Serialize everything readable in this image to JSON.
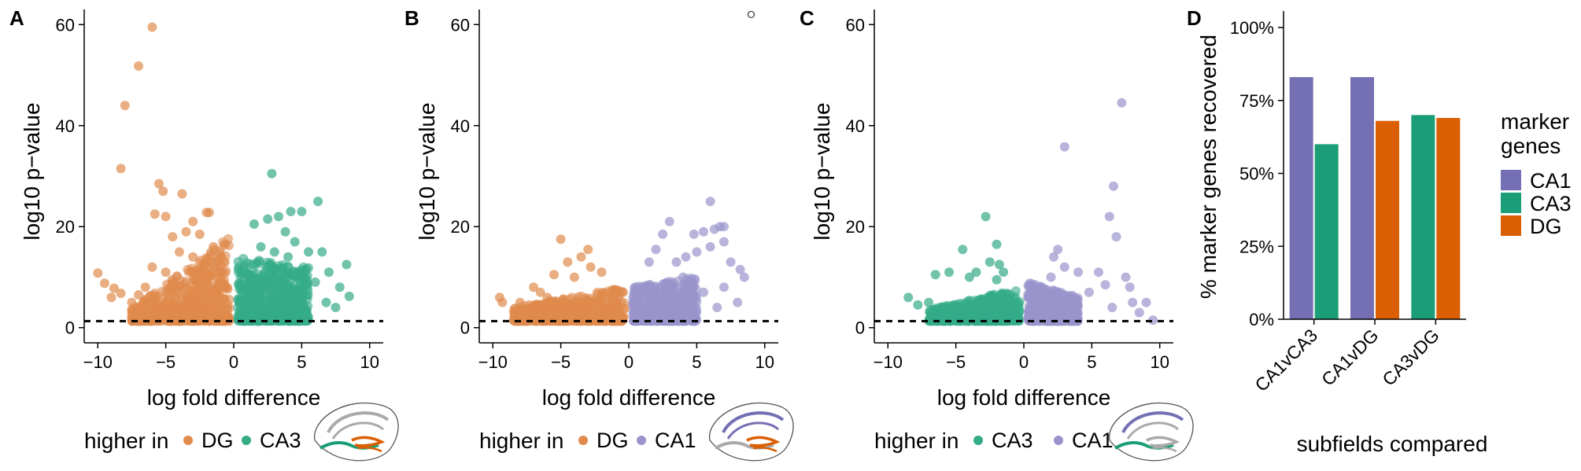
{
  "colors": {
    "DG": "#d95f02",
    "CA3": "#1b9e77",
    "CA1": "#7570b3",
    "DG_pt": "#e08b4c",
    "CA3_pt": "#35ab88",
    "CA1_pt": "#9a94cc"
  },
  "panels": [
    {
      "label": "A",
      "xlabel": "log fold difference",
      "ylabel": "log10 p−value",
      "xticks": [
        "−10",
        "−5",
        "0",
        "5",
        "10"
      ],
      "yticks": [
        "0",
        "20",
        "40",
        "60"
      ],
      "legend_title": "higher in",
      "legend_items": [
        {
          "name": "DG",
          "color": "#e08b4c"
        },
        {
          "name": "CA3",
          "color": "#35ab88"
        }
      ]
    },
    {
      "label": "B",
      "xlabel": "log fold difference",
      "ylabel": "log10 p−value",
      "xticks": [
        "−10",
        "−5",
        "0",
        "5",
        "10"
      ],
      "yticks": [
        "0",
        "20",
        "40",
        "60"
      ],
      "legend_title": "higher in",
      "legend_items": [
        {
          "name": "DG",
          "color": "#e08b4c"
        },
        {
          "name": "CA1",
          "color": "#9a94cc"
        }
      ]
    },
    {
      "label": "C",
      "xlabel": "log fold difference",
      "ylabel": "log10 p−value",
      "xticks": [
        "−10",
        "−5",
        "0",
        "5",
        "10"
      ],
      "yticks": [
        "0",
        "20",
        "40",
        "60"
      ],
      "legend_title": "higher in",
      "legend_items": [
        {
          "name": "CA3",
          "color": "#35ab88"
        },
        {
          "name": "CA1",
          "color": "#9a94cc"
        }
      ]
    },
    {
      "label": "D",
      "xlabel": "subfields compared",
      "ylabel": "% marker genes recovered",
      "xticks": [
        "CA1vCA3",
        "CA1vDG",
        "CA3vDG"
      ],
      "yticks": [
        "0%",
        "25%",
        "50%",
        "75%",
        "100%"
      ],
      "legend_title_1": "marker",
      "legend_title_2": "genes",
      "legend_items": [
        {
          "name": "CA1",
          "color": "#7570b3"
        },
        {
          "name": "CA3",
          "color": "#1b9e77"
        },
        {
          "name": "DG",
          "color": "#d95f02"
        }
      ]
    }
  ],
  "chart_data": [
    {
      "type": "scatter",
      "panel": "A",
      "xlabel": "log fold difference",
      "ylabel": "log10 p−value",
      "xlim": [
        -11,
        11
      ],
      "ylim": [
        -3,
        63
      ],
      "threshold_y": 1.3,
      "series": [
        {
          "name": "DG",
          "color": "#e08b4c",
          "points": [
            [
              -6,
              59.5
            ],
            [
              -7,
              51.8
            ],
            [
              -8,
              44
            ],
            [
              -8.3,
              31.5
            ],
            [
              -5.5,
              28.5
            ],
            [
              -5.2,
              27
            ],
            [
              -3.8,
              26.5
            ],
            [
              -5.8,
              22.5
            ],
            [
              -5,
              22
            ],
            [
              -3,
              21
            ],
            [
              -2,
              22.8
            ],
            [
              -1.8,
              22.8
            ],
            [
              -10,
              10.8
            ],
            [
              -9.5,
              8.8
            ],
            [
              -8.8,
              7.8
            ],
            [
              -8.3,
              6.8
            ],
            [
              -9,
              6
            ],
            [
              -4.5,
              18
            ],
            [
              -3.5,
              19
            ],
            [
              -2.5,
              18.5
            ],
            [
              -4,
              15
            ],
            [
              -3,
              14
            ],
            [
              -2,
              13
            ],
            [
              -6,
              12
            ],
            [
              -5,
              11
            ],
            [
              -6.5,
              8
            ],
            [
              -7,
              6.5
            ],
            [
              -7.5,
              5
            ],
            [
              -1.5,
              16
            ]
          ]
        },
        {
          "name": "CA3",
          "color": "#35ab88",
          "points": [
            [
              2.8,
              30.5
            ],
            [
              6.2,
              25
            ],
            [
              5,
              23
            ],
            [
              4.2,
              23
            ],
            [
              3.3,
              22
            ],
            [
              2.5,
              21.5
            ],
            [
              1.5,
              20.5
            ],
            [
              3.8,
              19
            ],
            [
              4.5,
              17
            ],
            [
              2,
              16
            ],
            [
              3,
              15
            ],
            [
              4,
              14
            ],
            [
              5.5,
              15
            ],
            [
              6.5,
              15
            ],
            [
              8.3,
              12.5
            ],
            [
              7,
              11
            ],
            [
              6,
              9
            ],
            [
              7.8,
              8
            ],
            [
              8.5,
              6.2
            ],
            [
              6.8,
              5
            ],
            [
              5,
              5
            ],
            [
              7.5,
              4
            ]
          ]
        }
      ],
      "dense_clusters": [
        {
          "series": "DG",
          "x": [
            -7.5,
            -0.3
          ],
          "y_top_left": 4,
          "y_top_right": 18
        },
        {
          "series": "CA3",
          "x": [
            0.3,
            5.5
          ],
          "y_top_left": 14,
          "y_top_right": 12
        }
      ]
    },
    {
      "type": "scatter",
      "panel": "B",
      "xlabel": "log fold difference",
      "ylabel": "log10 p−value",
      "xlim": [
        -11,
        11
      ],
      "ylim": [
        -3,
        63
      ],
      "threshold_y": 1.3,
      "outlier_open": [
        [
          9,
          62
        ]
      ],
      "series": [
        {
          "name": "DG",
          "color": "#e08b4c",
          "points": [
            [
              -5,
              17.5
            ],
            [
              -3,
              15.5
            ],
            [
              -3.5,
              14
            ],
            [
              -4.5,
              13
            ],
            [
              -2.8,
              12
            ],
            [
              -5.5,
              10.5
            ],
            [
              -2,
              11
            ],
            [
              -7,
              8
            ],
            [
              -6.5,
              7
            ],
            [
              -9.5,
              6
            ],
            [
              -9.3,
              5
            ],
            [
              -8,
              5
            ],
            [
              -6,
              6
            ],
            [
              -4,
              10
            ]
          ]
        },
        {
          "name": "CA1",
          "color": "#9a94cc",
          "points": [
            [
              6,
              25
            ],
            [
              3,
              21
            ],
            [
              7,
              20
            ],
            [
              6.7,
              20
            ],
            [
              6.3,
              19.5
            ],
            [
              5.5,
              19
            ],
            [
              2.5,
              18.5
            ],
            [
              4.8,
              18.5
            ],
            [
              7,
              17
            ],
            [
              6,
              16
            ],
            [
              5,
              15
            ],
            [
              4.2,
              14
            ],
            [
              7.5,
              13
            ],
            [
              8.2,
              11.5
            ],
            [
              3.5,
              13
            ],
            [
              4,
              10
            ],
            [
              8.5,
              10
            ],
            [
              7,
              8
            ],
            [
              5.5,
              7
            ],
            [
              8,
              5
            ],
            [
              6.5,
              4
            ],
            [
              2,
              15.5
            ],
            [
              1.5,
              13
            ]
          ]
        }
      ],
      "dense_clusters": [
        {
          "series": "DG",
          "x": [
            -8.5,
            -0.3
          ],
          "y_top_left": 4,
          "y_top_right": 8
        },
        {
          "series": "CA1",
          "x": [
            0.3,
            5
          ],
          "y_top_left": 8,
          "y_top_right": 10
        }
      ]
    },
    {
      "type": "scatter",
      "panel": "C",
      "xlabel": "log fold difference",
      "ylabel": "log10 p−value",
      "xlim": [
        -11,
        11
      ],
      "ylim": [
        -3,
        63
      ],
      "threshold_y": 1.3,
      "series": [
        {
          "name": "CA3",
          "color": "#35ab88",
          "points": [
            [
              -2.8,
              22
            ],
            [
              -2,
              16.5
            ],
            [
              -4.5,
              15.5
            ],
            [
              -2.5,
              13
            ],
            [
              -1.8,
              12.5
            ],
            [
              -5.5,
              11
            ],
            [
              -3.5,
              11
            ],
            [
              -4,
              10
            ],
            [
              -2,
              9.5
            ],
            [
              -6.5,
              10.5
            ],
            [
              -8.5,
              6
            ],
            [
              -7.8,
              4.5
            ],
            [
              -7,
              5
            ],
            [
              -6,
              4
            ],
            [
              -1.5,
              11
            ]
          ]
        },
        {
          "name": "CA1",
          "color": "#9a94cc",
          "points": [
            [
              7.2,
              44.5
            ],
            [
              3,
              35.8
            ],
            [
              6.6,
              28
            ],
            [
              6.3,
              22
            ],
            [
              6.8,
              18
            ],
            [
              2.5,
              15.5
            ],
            [
              2.2,
              14
            ],
            [
              3,
              12
            ],
            [
              4,
              11
            ],
            [
              2,
              10
            ],
            [
              5.5,
              11
            ],
            [
              6,
              8.5
            ],
            [
              7.5,
              10
            ],
            [
              7.8,
              8
            ],
            [
              4.8,
              7
            ],
            [
              8,
              5
            ],
            [
              6.5,
              4
            ],
            [
              9,
              5
            ],
            [
              8.5,
              3
            ],
            [
              9.5,
              1.5
            ]
          ]
        }
      ],
      "dense_clusters": [
        {
          "series": "CA3",
          "x": [
            -7,
            -0.3
          ],
          "y_top_left": 3.5,
          "y_top_right": 8
        },
        {
          "series": "CA1",
          "x": [
            0.3,
            4
          ],
          "y_top_left": 9,
          "y_top_right": 6
        }
      ]
    },
    {
      "type": "bar",
      "panel": "D",
      "categories": [
        "CA1vCA3",
        "CA1vDG",
        "CA3vDG"
      ],
      "xlabel": "subfields compared",
      "ylabel": "% marker genes recovered",
      "ylim": [
        0,
        100
      ],
      "legend_title": "marker genes",
      "series": [
        {
          "name": "CA1",
          "color": "#7570b3",
          "values": [
            83,
            83,
            null
          ]
        },
        {
          "name": "CA3",
          "color": "#1b9e77",
          "values": [
            60,
            null,
            70
          ]
        },
        {
          "name": "DG",
          "color": "#d95f02",
          "values": [
            null,
            68,
            69
          ]
        }
      ]
    }
  ]
}
